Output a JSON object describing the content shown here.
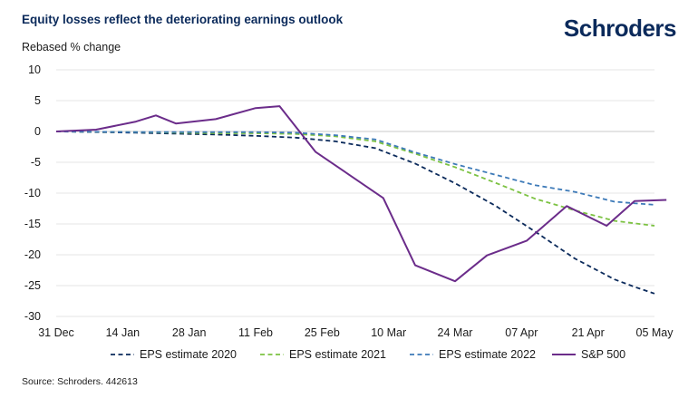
{
  "header": {
    "title": "Equity losses reflect the deteriorating earnings outlook",
    "brand": "Schroders"
  },
  "footer": {
    "source": "Source: Schroders. 442613"
  },
  "chart_data": {
    "type": "line",
    "ylabel": "Rebased % change",
    "xlabel": "",
    "categories": [
      "31 Dec",
      "14 Jan",
      "28 Jan",
      "11 Feb",
      "25 Feb",
      "10 Mar",
      "24 Mar",
      "07 Apr",
      "21 Apr",
      "05 May"
    ],
    "ylim": [
      -30,
      10
    ],
    "yticks": [
      10,
      5,
      0,
      -5,
      -10,
      -15,
      -20,
      -25,
      -30
    ],
    "grid": true,
    "legend_position": "bottom",
    "series": [
      {
        "name": "EPS estimate 2020",
        "style": "dashed",
        "color": "#0b2a5b",
        "points": [
          [
            0,
            0
          ],
          [
            2,
            -0.2
          ],
          [
            4,
            -0.5
          ],
          [
            5,
            -0.7
          ],
          [
            6,
            -1.0
          ],
          [
            7,
            -1.6
          ],
          [
            8,
            -2.7
          ],
          [
            9,
            -5.2
          ],
          [
            10,
            -8.4
          ],
          [
            11,
            -12.0
          ],
          [
            12,
            -16.2
          ],
          [
            13,
            -20.6
          ],
          [
            14,
            -24.0
          ],
          [
            14.5,
            -25.2
          ],
          [
            15,
            -26.3
          ]
        ]
      },
      {
        "name": "EPS estimate 2021",
        "style": "dashed",
        "color": "#7cc242",
        "points": [
          [
            0,
            0
          ],
          [
            2,
            -0.1
          ],
          [
            4,
            -0.3
          ],
          [
            5,
            -0.3
          ],
          [
            6,
            -0.4
          ],
          [
            7,
            -0.8
          ],
          [
            8,
            -1.6
          ],
          [
            9,
            -3.6
          ],
          [
            10,
            -5.8
          ],
          [
            11,
            -8.3
          ],
          [
            12,
            -10.9
          ],
          [
            13,
            -12.8
          ],
          [
            14,
            -14.5
          ],
          [
            15,
            -15.3
          ]
        ]
      },
      {
        "name": "EPS estimate 2022",
        "style": "dashed",
        "color": "#3d7ab8",
        "points": [
          [
            0,
            0
          ],
          [
            2,
            -0.1
          ],
          [
            4,
            -0.1
          ],
          [
            5,
            -0.1
          ],
          [
            6,
            -0.2
          ],
          [
            7,
            -0.6
          ],
          [
            8,
            -1.3
          ],
          [
            9,
            -3.4
          ],
          [
            10,
            -5.3
          ],
          [
            11,
            -7.0
          ],
          [
            12,
            -8.7
          ],
          [
            13,
            -9.8
          ],
          [
            14,
            -11.4
          ],
          [
            15,
            -11.9
          ]
        ]
      },
      {
        "name": "S&P 500",
        "style": "solid",
        "color": "#6b2c8a",
        "points": [
          [
            0,
            0
          ],
          [
            1,
            0.3
          ],
          [
            2,
            1.6
          ],
          [
            2.5,
            2.6
          ],
          [
            3,
            1.3
          ],
          [
            4,
            2.0
          ],
          [
            5,
            3.8
          ],
          [
            5.6,
            4.1
          ],
          [
            6.5,
            -3.3
          ],
          [
            8.2,
            -10.8
          ],
          [
            9,
            -21.7
          ],
          [
            10,
            -24.3
          ],
          [
            10.8,
            -20.1
          ],
          [
            11.8,
            -17.7
          ],
          [
            12.8,
            -12.1
          ],
          [
            13.8,
            -15.3
          ],
          [
            14.5,
            -11.3
          ],
          [
            15.3,
            -11.1
          ]
        ]
      }
    ]
  }
}
